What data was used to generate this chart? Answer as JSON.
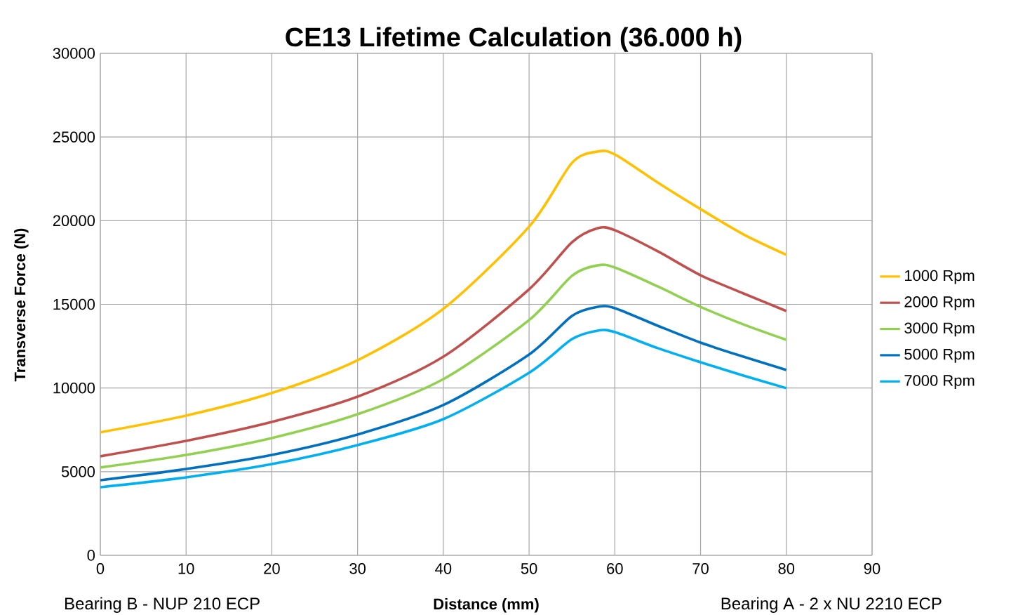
{
  "chart_data": {
    "type": "line",
    "title": "CE13   Lifetime Calculation (36.000 h)",
    "xlabel": "Distance (mm)",
    "ylabel": "Transverse Force (N)",
    "annotations": [
      "Bearing B - NUP 210 ECP",
      "Bearing A - 2 x NU 2210 ECP"
    ],
    "x": [
      0,
      10,
      20,
      30,
      40,
      50,
      55,
      58,
      60,
      65,
      70,
      75,
      80
    ],
    "series": [
      {
        "name": "1000 Rpm",
        "color": "#ffc000",
        "values": [
          7350,
          8350,
          9700,
          11660,
          14730,
          19640,
          23450,
          24130,
          23960,
          22280,
          20690,
          19180,
          17960
        ]
      },
      {
        "name": "2000 Rpm",
        "color": "#c0504d",
        "values": [
          5920,
          6840,
          7970,
          9480,
          11870,
          15900,
          18710,
          19550,
          19430,
          18170,
          16740,
          15650,
          14600
        ]
      },
      {
        "name": "3000 Rpm",
        "color": "#92d050",
        "values": [
          5250,
          6000,
          7010,
          8430,
          10530,
          14060,
          16700,
          17330,
          17200,
          16070,
          14850,
          13800,
          12880
        ]
      },
      {
        "name": "5000 Rpm",
        "color": "#0070c0",
        "values": [
          4490,
          5160,
          6000,
          7220,
          8980,
          12000,
          14310,
          14850,
          14770,
          13720,
          12710,
          11870,
          11080
        ]
      },
      {
        "name": "7000 Rpm",
        "color": "#00b0f0",
        "values": [
          4070,
          4660,
          5450,
          6590,
          8140,
          10910,
          12920,
          13430,
          13340,
          12380,
          11540,
          10740,
          9990
        ]
      }
    ],
    "xlim": [
      0,
      90
    ],
    "xticks": [
      0,
      10,
      20,
      30,
      40,
      50,
      60,
      70,
      80,
      90
    ],
    "ylim": [
      0,
      30000
    ],
    "yticks": [
      0,
      5000,
      10000,
      15000,
      20000,
      25000,
      30000
    ],
    "grid": true,
    "legend": "right",
    "marker": "none",
    "line_style": "solid"
  }
}
